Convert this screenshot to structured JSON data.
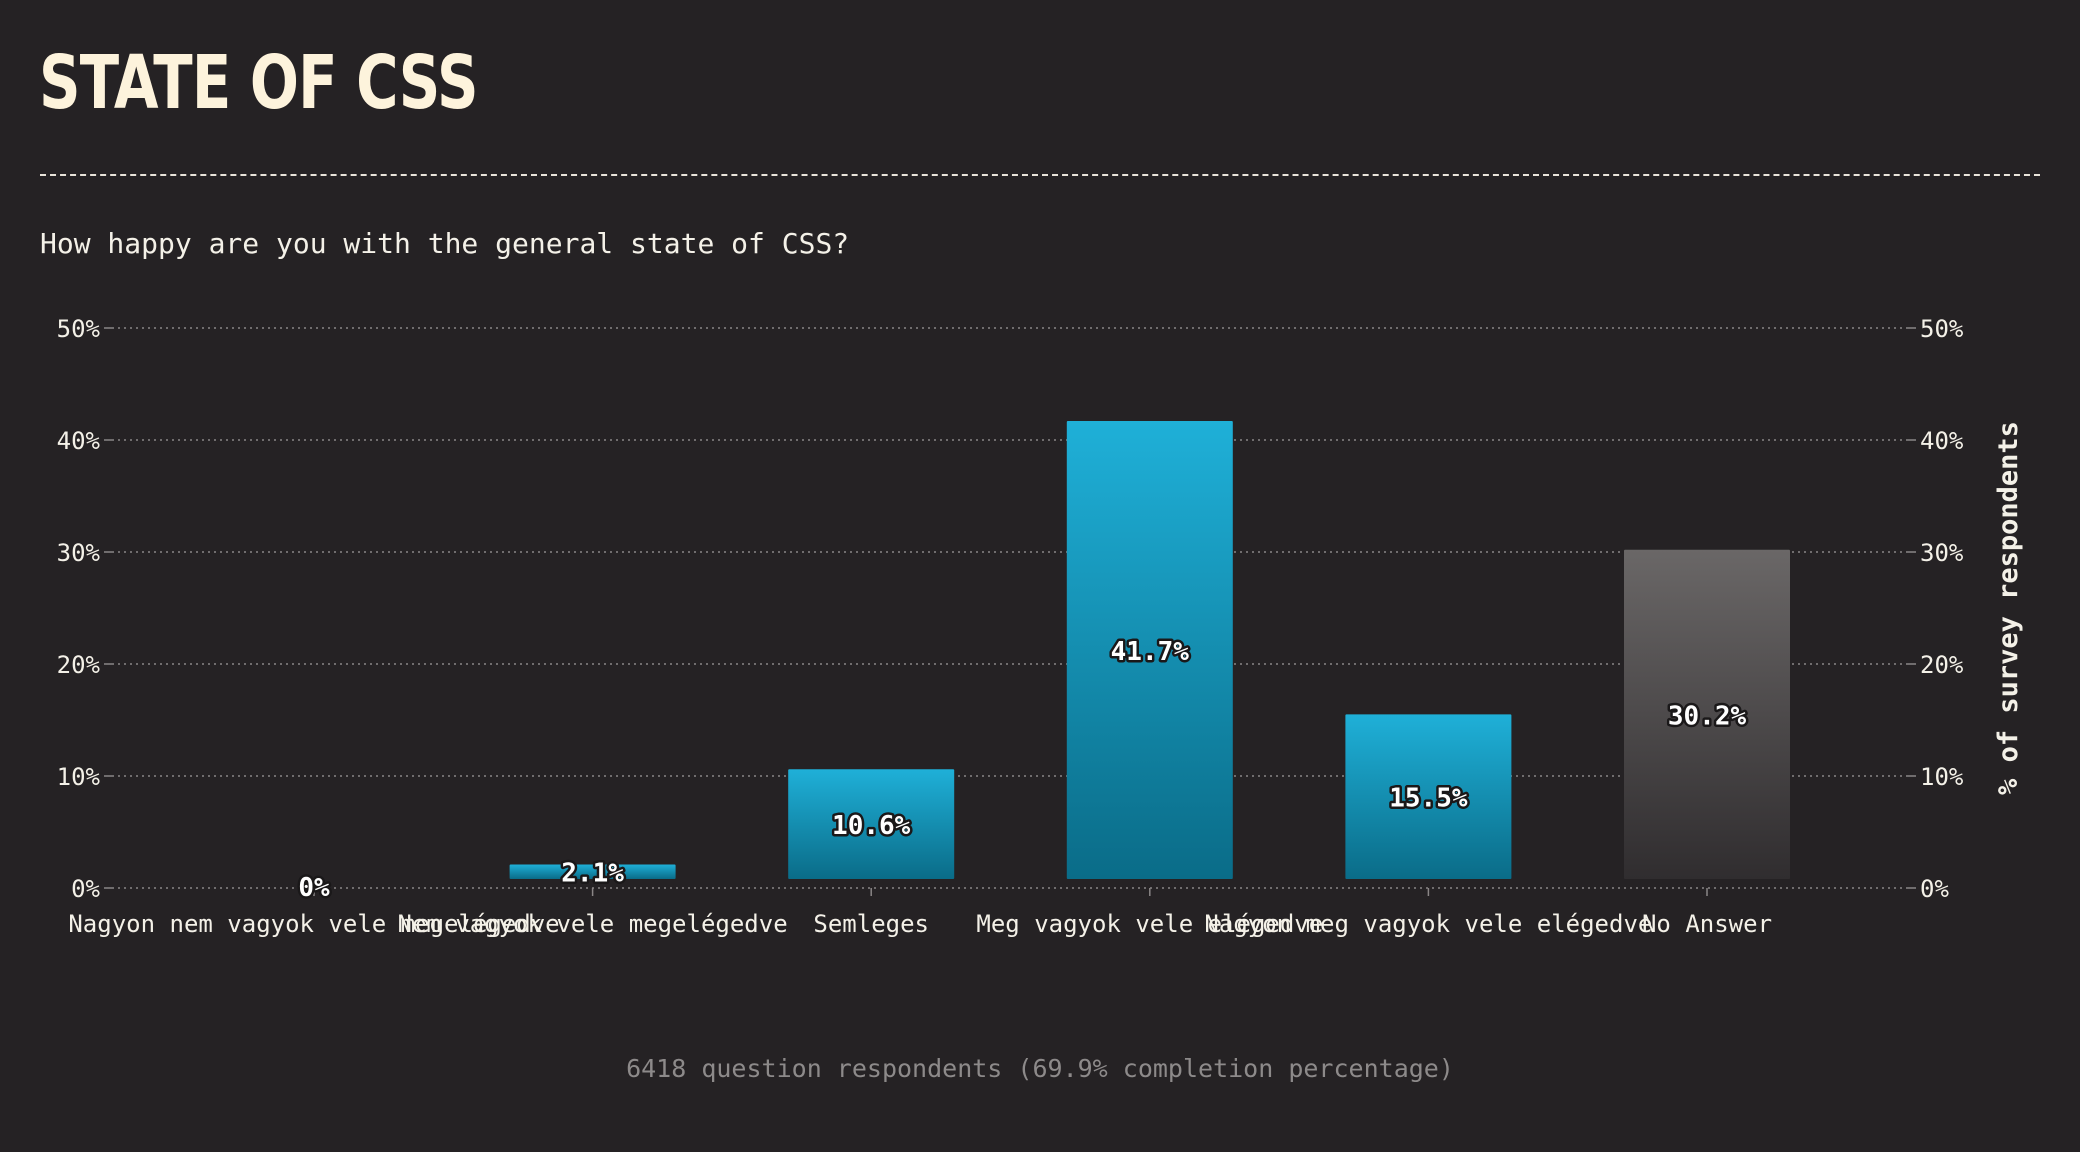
{
  "header": {
    "logo_text": "STATE OF CSS"
  },
  "question": "How happy are you with the general state of CSS?",
  "footer": "6418 question respondents (69.9% completion percentage)",
  "colors": {
    "background": "#252224",
    "bar_top": "#1fb0d8",
    "bar_bottom": "#0a6c88",
    "no_answer_top": "#6a6767",
    "no_answer_bottom": "#302d2f",
    "text": "#f4f1e8",
    "grid": "#8a8686"
  },
  "chart_data": {
    "type": "bar",
    "categories": [
      "Nagyon nem vagyok vele megelégedve",
      "Nem vagyok vele megelégedve",
      "Semleges",
      "Meg vagyok vele elégedve",
      "Nagyon meg vagyok vele elégedve",
      "No Answer"
    ],
    "values": [
      0,
      2.1,
      10.6,
      41.7,
      15.5,
      30.2
    ],
    "value_labels": [
      "0%",
      "2.1%",
      "10.6%",
      "41.7%",
      "15.5%",
      "30.2%"
    ],
    "ylim": [
      0,
      50
    ],
    "y_ticks": [
      0,
      10,
      20,
      30,
      40,
      50
    ],
    "y_tick_labels": [
      "0%",
      "10%",
      "20%",
      "30%",
      "40%",
      "50%"
    ],
    "ylabel": "% of survey respondents",
    "xlabel": "",
    "grid": true,
    "y_axis_both_sides": true
  }
}
